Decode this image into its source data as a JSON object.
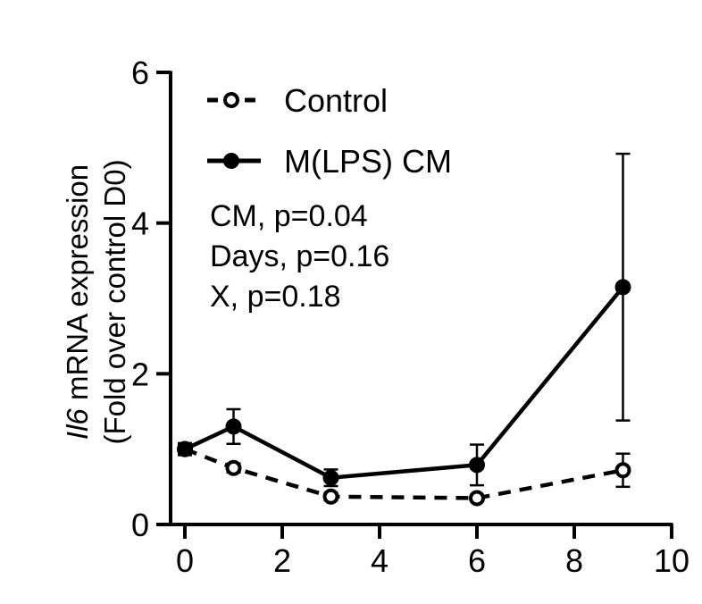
{
  "chart_data": {
    "type": "line",
    "ylabel": {
      "gene": "Il6",
      "line1_rest": " mRNA expression",
      "line2": "(Fold over control D0)"
    },
    "xlabel": "",
    "xlim": [
      0,
      10
    ],
    "ylim": [
      0,
      6
    ],
    "x_ticks": [
      0,
      2,
      4,
      6,
      8,
      10
    ],
    "y_ticks": [
      0,
      2,
      4,
      6
    ],
    "x_tick_labels": [
      "0",
      "2",
      "4",
      "6",
      "8",
      "10"
    ],
    "y_tick_labels": [
      "0",
      "2",
      "4",
      "6"
    ],
    "series": [
      {
        "name": "Control",
        "style": "dashed",
        "marker": "open-circle",
        "x": [
          0,
          1,
          3,
          6,
          9
        ],
        "values": [
          1.0,
          0.75,
          0.37,
          0.35,
          0.72
        ],
        "err": [
          0.08,
          0.06,
          0.05,
          0.04,
          0.22
        ]
      },
      {
        "name": "M(LPS) CM",
        "style": "solid",
        "marker": "filled-circle",
        "x": [
          0,
          1,
          3,
          6,
          9
        ],
        "values": [
          1.0,
          1.3,
          0.62,
          0.79,
          3.15
        ],
        "err": [
          0.06,
          0.23,
          0.11,
          0.27,
          1.77
        ]
      }
    ],
    "annotations": [
      "CM, p=0.04",
      "Days, p=0.16",
      "X, p=0.18"
    ],
    "legend_position": "top-left"
  }
}
